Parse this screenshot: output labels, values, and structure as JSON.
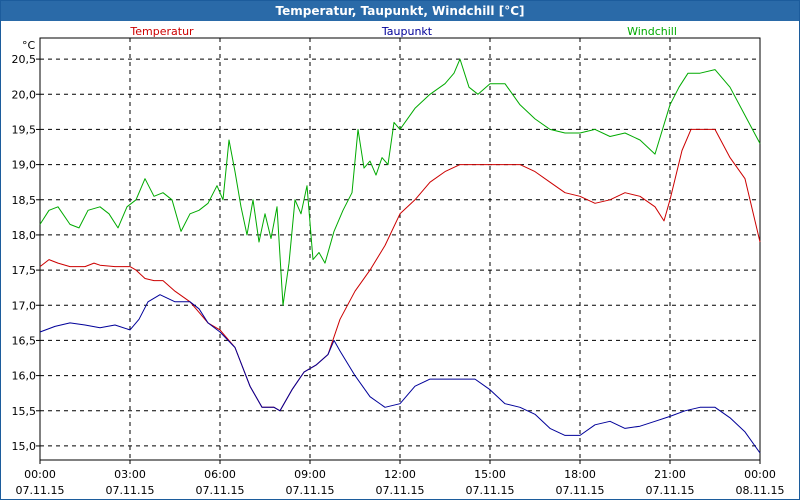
{
  "window": {
    "title": "Temperatur, Taupunkt, Windchill [°C]"
  },
  "chart_data": {
    "type": "line",
    "title": "Temperatur, Taupunkt, Windchill [°C]",
    "ylabel": "°C",
    "xlabel": "",
    "ylim": [
      14.8,
      20.8
    ],
    "xlim": [
      0,
      24
    ],
    "yticks": [
      15.0,
      15.5,
      16.0,
      16.5,
      17.0,
      17.5,
      18.0,
      18.5,
      19.0,
      19.5,
      20.0,
      20.5
    ],
    "ytick_labels": [
      "15,0",
      "15,5",
      "16,0",
      "16,5",
      "17,0",
      "17,5",
      "18,0",
      "18,5",
      "19,0",
      "19,5",
      "20,0",
      "20,5"
    ],
    "xticks": [
      {
        "x": 0,
        "time": "00:00",
        "date": "07.11.15"
      },
      {
        "x": 3,
        "time": "03:00",
        "date": "07.11.15"
      },
      {
        "x": 6,
        "time": "06:00",
        "date": "07.11.15"
      },
      {
        "x": 9,
        "time": "09:00",
        "date": "07.11.15"
      },
      {
        "x": 12,
        "time": "12:00",
        "date": "07.11.15"
      },
      {
        "x": 15,
        "time": "15:00",
        "date": "07.11.15"
      },
      {
        "x": 18,
        "time": "18:00",
        "date": "07.11.15"
      },
      {
        "x": 21,
        "time": "21:00",
        "date": "07.11.15"
      },
      {
        "x": 24,
        "time": "00:00",
        "date": "08.11.15"
      }
    ],
    "grid": true,
    "legend_position": "top",
    "series": [
      {
        "name": "Temperatur",
        "color": "#cc0000",
        "points": [
          [
            0,
            17.55
          ],
          [
            0.3,
            17.65
          ],
          [
            0.6,
            17.6
          ],
          [
            1,
            17.55
          ],
          [
            1.5,
            17.55
          ],
          [
            1.8,
            17.6
          ],
          [
            2,
            17.57
          ],
          [
            2.5,
            17.55
          ],
          [
            3,
            17.55
          ],
          [
            3.2,
            17.5
          ],
          [
            3.5,
            17.38
          ],
          [
            3.8,
            17.35
          ],
          [
            4.1,
            17.35
          ],
          [
            4.5,
            17.2
          ],
          [
            5,
            17.05
          ],
          [
            5.3,
            16.9
          ],
          [
            5.6,
            16.75
          ],
          [
            6,
            16.65
          ],
          [
            6.5,
            16.4
          ],
          [
            7,
            15.85
          ],
          [
            7.4,
            15.55
          ],
          [
            7.8,
            15.55
          ],
          [
            8,
            15.5
          ],
          [
            8.4,
            15.8
          ],
          [
            8.8,
            16.05
          ],
          [
            9.2,
            16.15
          ],
          [
            9.6,
            16.3
          ],
          [
            10,
            16.8
          ],
          [
            10.5,
            17.2
          ],
          [
            11,
            17.5
          ],
          [
            11.5,
            17.85
          ],
          [
            12,
            18.3
          ],
          [
            12.5,
            18.5
          ],
          [
            13,
            18.75
          ],
          [
            13.5,
            18.9
          ],
          [
            14,
            19.0
          ],
          [
            14.5,
            19.0
          ],
          [
            15,
            19.0
          ],
          [
            15.5,
            19.0
          ],
          [
            16,
            19.0
          ],
          [
            16.5,
            18.9
          ],
          [
            17,
            18.75
          ],
          [
            17.5,
            18.6
          ],
          [
            18,
            18.55
          ],
          [
            18.5,
            18.45
          ],
          [
            19,
            18.5
          ],
          [
            19.5,
            18.6
          ],
          [
            20,
            18.55
          ],
          [
            20.5,
            18.4
          ],
          [
            20.8,
            18.2
          ],
          [
            21,
            18.5
          ],
          [
            21.4,
            19.2
          ],
          [
            21.7,
            19.5
          ],
          [
            22,
            19.5
          ],
          [
            22.5,
            19.5
          ],
          [
            23,
            19.1
          ],
          [
            23.5,
            18.8
          ],
          [
            24,
            17.9
          ]
        ]
      },
      {
        "name": "Taupunkt",
        "color": "#000099",
        "points": [
          [
            0,
            16.62
          ],
          [
            0.5,
            16.7
          ],
          [
            1,
            16.75
          ],
          [
            1.5,
            16.72
          ],
          [
            2,
            16.68
          ],
          [
            2.5,
            16.72
          ],
          [
            3,
            16.65
          ],
          [
            3.3,
            16.8
          ],
          [
            3.6,
            17.05
          ],
          [
            4,
            17.15
          ],
          [
            4.5,
            17.05
          ],
          [
            5,
            17.05
          ],
          [
            5.3,
            16.95
          ],
          [
            5.6,
            16.75
          ],
          [
            6,
            16.62
          ],
          [
            6.5,
            16.4
          ],
          [
            7,
            15.85
          ],
          [
            7.4,
            15.55
          ],
          [
            7.8,
            15.55
          ],
          [
            8,
            15.5
          ],
          [
            8.4,
            15.8
          ],
          [
            8.8,
            16.05
          ],
          [
            9.2,
            16.15
          ],
          [
            9.6,
            16.3
          ],
          [
            9.8,
            16.5
          ],
          [
            10,
            16.35
          ],
          [
            10.5,
            16.0
          ],
          [
            11,
            15.7
          ],
          [
            11.5,
            15.55
          ],
          [
            12,
            15.6
          ],
          [
            12.5,
            15.85
          ],
          [
            13,
            15.95
          ],
          [
            13.5,
            15.95
          ],
          [
            14,
            15.95
          ],
          [
            14.5,
            15.95
          ],
          [
            15,
            15.8
          ],
          [
            15.5,
            15.6
          ],
          [
            16,
            15.55
          ],
          [
            16.5,
            15.45
          ],
          [
            17,
            15.25
          ],
          [
            17.5,
            15.15
          ],
          [
            18,
            15.15
          ],
          [
            18.5,
            15.3
          ],
          [
            19,
            15.35
          ],
          [
            19.5,
            15.25
          ],
          [
            20,
            15.28
          ],
          [
            20.5,
            15.35
          ],
          [
            21,
            15.42
          ],
          [
            21.5,
            15.5
          ],
          [
            22,
            15.55
          ],
          [
            22.5,
            15.55
          ],
          [
            23,
            15.4
          ],
          [
            23.5,
            15.2
          ],
          [
            24,
            14.9
          ]
        ]
      },
      {
        "name": "Windchill",
        "color": "#00aa00",
        "points": [
          [
            0,
            18.15
          ],
          [
            0.3,
            18.35
          ],
          [
            0.6,
            18.4
          ],
          [
            1,
            18.15
          ],
          [
            1.3,
            18.1
          ],
          [
            1.6,
            18.35
          ],
          [
            2,
            18.4
          ],
          [
            2.3,
            18.3
          ],
          [
            2.6,
            18.1
          ],
          [
            2.9,
            18.4
          ],
          [
            3.2,
            18.5
          ],
          [
            3.5,
            18.8
          ],
          [
            3.8,
            18.55
          ],
          [
            4.1,
            18.6
          ],
          [
            4.4,
            18.5
          ],
          [
            4.7,
            18.05
          ],
          [
            5,
            18.3
          ],
          [
            5.3,
            18.35
          ],
          [
            5.6,
            18.45
          ],
          [
            5.9,
            18.7
          ],
          [
            6.1,
            18.5
          ],
          [
            6.3,
            19.35
          ],
          [
            6.5,
            18.9
          ],
          [
            6.7,
            18.4
          ],
          [
            6.9,
            18.0
          ],
          [
            7.1,
            18.5
          ],
          [
            7.3,
            17.9
          ],
          [
            7.5,
            18.3
          ],
          [
            7.7,
            17.95
          ],
          [
            7.9,
            18.4
          ],
          [
            8.1,
            17.0
          ],
          [
            8.3,
            17.6
          ],
          [
            8.5,
            18.5
          ],
          [
            8.7,
            18.3
          ],
          [
            8.9,
            18.7
          ],
          [
            9.1,
            17.65
          ],
          [
            9.3,
            17.75
          ],
          [
            9.5,
            17.6
          ],
          [
            9.8,
            18.05
          ],
          [
            10.1,
            18.35
          ],
          [
            10.4,
            18.6
          ],
          [
            10.6,
            19.5
          ],
          [
            10.8,
            18.95
          ],
          [
            11,
            19.05
          ],
          [
            11.2,
            18.85
          ],
          [
            11.4,
            19.1
          ],
          [
            11.6,
            19.0
          ],
          [
            11.8,
            19.6
          ],
          [
            12,
            19.5
          ],
          [
            12.5,
            19.8
          ],
          [
            13,
            20.0
          ],
          [
            13.5,
            20.15
          ],
          [
            13.8,
            20.3
          ],
          [
            14,
            20.5
          ],
          [
            14.3,
            20.1
          ],
          [
            14.6,
            20.0
          ],
          [
            15,
            20.15
          ],
          [
            15.5,
            20.15
          ],
          [
            16,
            19.85
          ],
          [
            16.5,
            19.65
          ],
          [
            17,
            19.5
          ],
          [
            17.5,
            19.45
          ],
          [
            18,
            19.45
          ],
          [
            18.5,
            19.5
          ],
          [
            19,
            19.4
          ],
          [
            19.5,
            19.45
          ],
          [
            20,
            19.35
          ],
          [
            20.5,
            19.15
          ],
          [
            21,
            19.85
          ],
          [
            21.3,
            20.1
          ],
          [
            21.6,
            20.3
          ],
          [
            22,
            20.3
          ],
          [
            22.5,
            20.35
          ],
          [
            23,
            20.1
          ],
          [
            23.5,
            19.7
          ],
          [
            24,
            19.3
          ]
        ]
      }
    ]
  }
}
